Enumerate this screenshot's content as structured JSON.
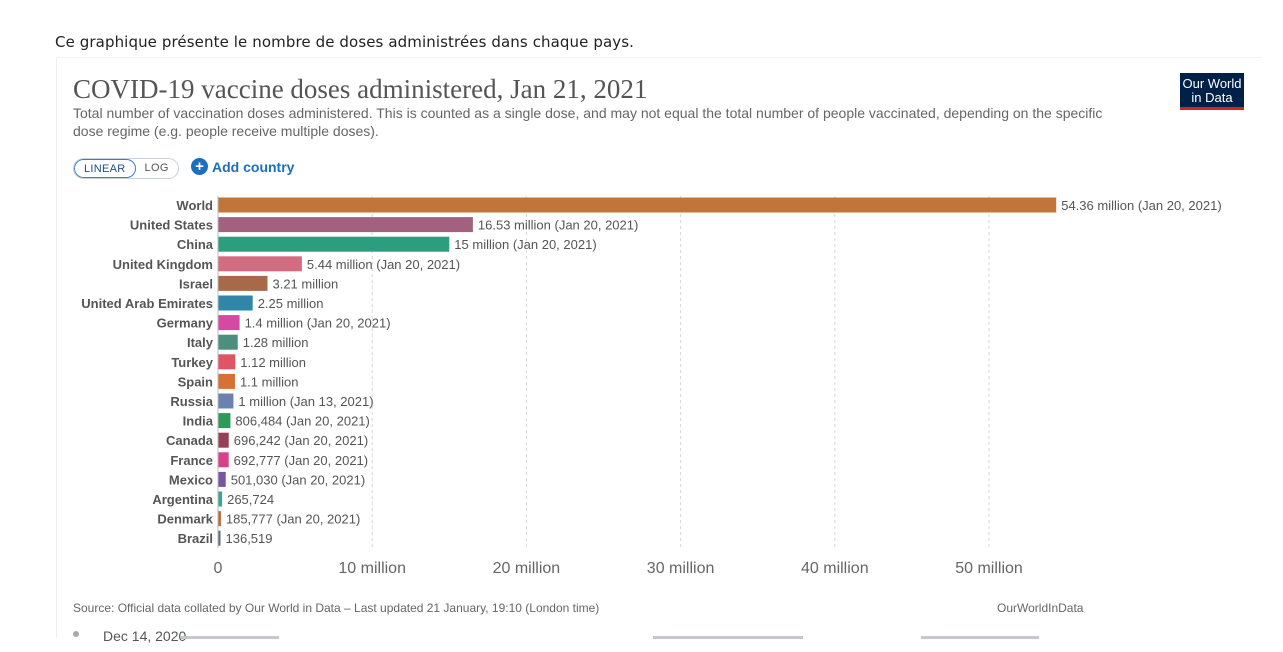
{
  "intro_text": "Ce graphique présente le nombre de doses administrées dans chaque pays.",
  "header": {
    "title": "COVID-19 vaccine doses administered, Jan 21, 2021",
    "subtitle": "Total number of vaccination doses administered. This is counted as a single dose, and may not equal the total number of people vaccinated, depending on the specific dose regime (e.g. people receive multiple doses).",
    "logo_line1": "Our World",
    "logo_line2": "in Data"
  },
  "controls": {
    "linear_label": "LINEAR",
    "log_label": "LOG",
    "add_country_label": "Add country"
  },
  "chart_data": {
    "type": "bar",
    "orientation": "horizontal",
    "categories": [
      "World",
      "United States",
      "China",
      "United Kingdom",
      "Israel",
      "United Arab Emirates",
      "Germany",
      "Italy",
      "Turkey",
      "Spain",
      "Russia",
      "India",
      "Canada",
      "France",
      "Mexico",
      "Argentina",
      "Denmark",
      "Brazil"
    ],
    "values": [
      54360000,
      16530000,
      15000000,
      5440000,
      3210000,
      2250000,
      1400000,
      1280000,
      1120000,
      1100000,
      1000000,
      806484,
      696242,
      692777,
      501030,
      265724,
      185777,
      136519
    ],
    "value_labels": [
      "54.36 million (Jan 20, 2021)",
      "16.53 million (Jan 20, 2021)",
      "15 million (Jan 20, 2021)",
      "5.44 million (Jan 20, 2021)",
      "3.21 million",
      "2.25 million",
      "1.4 million (Jan 20, 2021)",
      "1.28 million",
      "1.12 million",
      "1.1 million",
      "1 million (Jan 13, 2021)",
      "806,484 (Jan 20, 2021)",
      "696,242 (Jan 20, 2021)",
      "692,777 (Jan 20, 2021)",
      "501,030 (Jan 20, 2021)",
      "265,724",
      "185,777 (Jan 20, 2021)",
      "136,519"
    ],
    "colors": [
      "#c0763a",
      "#a2617e",
      "#2b9e7f",
      "#d26c7e",
      "#a7694a",
      "#2f86a6",
      "#d748a5",
      "#4b8f7e",
      "#e05466",
      "#d77035",
      "#6d81b0",
      "#2e9a57",
      "#973f58",
      "#db3f87",
      "#7b54a1",
      "#3aa39a",
      "#c4602c",
      "#5c6d80"
    ],
    "xlim": [
      0,
      55000000
    ],
    "x_ticks": [
      0,
      10000000,
      20000000,
      30000000,
      40000000,
      50000000
    ],
    "x_tick_labels": [
      "0",
      "10 million",
      "20 million",
      "30 million",
      "40 million",
      "50 million"
    ],
    "grid": true,
    "scale": "linear"
  },
  "footer": {
    "source": "Source: Official data collated by Our World in Data – Last updated 21 January, 19:10 (London time)",
    "owid_link": "OurWorldInData",
    "timeline_start": "Dec 14, 2020"
  }
}
